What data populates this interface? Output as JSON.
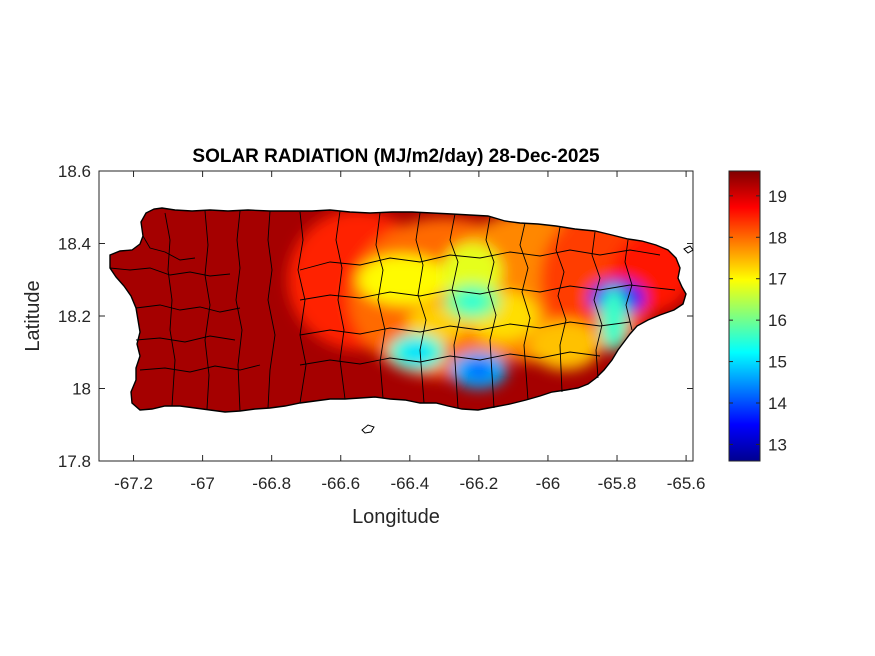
{
  "chart_data": {
    "type": "heatmap",
    "title": "SOLAR RADIATION (MJ/m2/day) 28-Dec-2025",
    "xlabel": "Longitude",
    "ylabel": "Latitude",
    "xlim": [
      -67.3,
      -65.58
    ],
    "ylim": [
      17.8,
      18.6
    ],
    "xticks": [
      -67.2,
      -67,
      -66.8,
      -66.6,
      -66.4,
      -66.2,
      -66,
      -65.8,
      -65.6
    ],
    "xtick_labels": [
      "-67.2",
      "-67",
      "-66.8",
      "-66.6",
      "-66.4",
      "-66.2",
      "-66",
      "-65.8",
      "-65.6"
    ],
    "yticks": [
      17.8,
      18,
      18.2,
      18.4,
      18.6
    ],
    "ytick_labels": [
      "17.8",
      "18",
      "18.2",
      "18.4",
      "18.6"
    ],
    "colorbar": {
      "colormap": "jet",
      "range": [
        12.6,
        19.6
      ],
      "ticks": [
        13,
        14,
        15,
        16,
        17,
        18,
        19
      ],
      "tick_labels": [
        "13",
        "14",
        "15",
        "16",
        "17",
        "18",
        "19"
      ]
    },
    "grid": false,
    "low_radiation_areas": [
      {
        "lon": -65.8,
        "lat": 18.25,
        "value": 13.2
      },
      {
        "lon": -66.38,
        "lat": 18.1,
        "value": 15.0
      },
      {
        "lon": -66.2,
        "lat": 18.05,
        "value": 14.2
      },
      {
        "lon": -66.22,
        "lat": 18.24,
        "value": 15.5
      }
    ],
    "west_value": 19.5,
    "central_value": 18.2
  }
}
